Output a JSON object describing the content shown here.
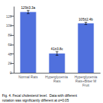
{
  "chart_data": {
    "type": "bar",
    "categories": [
      "Normal Rats",
      "Hyperglycemia Rats",
      "Hyperglycemia\nRats+Bitter M\nFruit"
    ],
    "values": [
      129,
      41,
      105
    ],
    "errors": [
      3.3,
      3.8,
      2.4
    ],
    "value_labels": [
      "129±3.3a",
      "41±3.8c",
      "105±2.4b"
    ],
    "data_labels": true,
    "ylim": [
      0,
      140
    ],
    "yticks": [
      0,
      20,
      40,
      60,
      80,
      100,
      120
    ],
    "grid": false,
    "annotations": [
      "Fig. 4. Fecal cholesterol level.  Data with different",
      "notation was significantly different at α=0.05"
    ]
  }
}
